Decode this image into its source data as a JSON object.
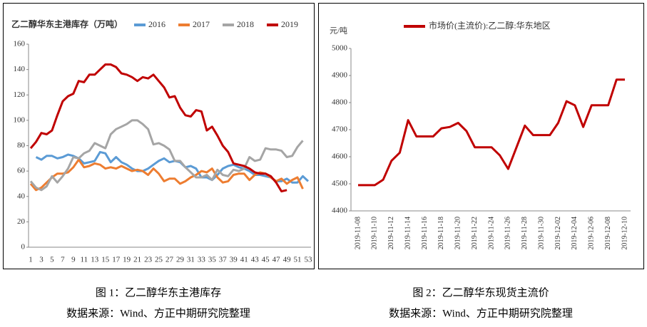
{
  "chart_data": [
    {
      "type": "line",
      "title": "乙二醇华东主港库存（万吨）",
      "categories": [
        1,
        null,
        3,
        null,
        5,
        null,
        7,
        null,
        9,
        null,
        11,
        null,
        13,
        null,
        15,
        null,
        17,
        null,
        19,
        null,
        21,
        null,
        23,
        null,
        25,
        null,
        27,
        null,
        29,
        null,
        31,
        null,
        33,
        null,
        35,
        null,
        37,
        null,
        39,
        null,
        41,
        null,
        43,
        null,
        45,
        null,
        47,
        null,
        49,
        null,
        51,
        null,
        53
      ],
      "series": [
        {
          "name": "2016",
          "color": "#5b9bd5",
          "values": [
            null,
            71,
            69,
            72,
            72,
            70,
            71,
            73,
            72,
            70,
            66,
            67,
            68,
            75,
            74,
            67,
            71,
            67,
            65,
            62,
            60,
            60,
            62,
            65,
            68,
            70,
            67,
            68,
            67,
            63,
            64,
            62,
            55,
            55,
            53,
            57,
            62,
            64,
            65,
            63,
            62,
            60,
            57,
            57,
            56,
            55,
            52,
            52,
            54,
            51,
            51,
            56,
            52
          ]
        },
        {
          "name": "2017",
          "color": "#ed7d31",
          "values": [
            50,
            45,
            47,
            51,
            55,
            58,
            58,
            59,
            63,
            69,
            63,
            64,
            66,
            65,
            62,
            63,
            62,
            64,
            62,
            60,
            61,
            60,
            57,
            62,
            58,
            52,
            54,
            54,
            50,
            52,
            55,
            57,
            60,
            59,
            62,
            55,
            51,
            52,
            57,
            58,
            58,
            53,
            57,
            59,
            58,
            55,
            52,
            54,
            50,
            53,
            55,
            46,
            null
          ]
        },
        {
          "name": "2018",
          "color": "#a5a5a5",
          "values": [
            52,
            47,
            45,
            48,
            56,
            51,
            56,
            62,
            71,
            70,
            74,
            76,
            82,
            80,
            78,
            89,
            93,
            95,
            97,
            100,
            100,
            97,
            93,
            81,
            82,
            80,
            77,
            68,
            68,
            63,
            59,
            55,
            55,
            57,
            53,
            61,
            57,
            56,
            61,
            60,
            62,
            71,
            68,
            69,
            78,
            77,
            77,
            76,
            71,
            72,
            79,
            84,
            null
          ]
        },
        {
          "name": "2019",
          "color": "#c00000",
          "values": [
            78,
            83,
            90,
            89,
            92,
            104,
            115,
            119,
            121,
            131,
            130,
            136,
            136,
            140,
            144,
            144,
            142,
            137,
            136,
            134,
            131,
            134,
            133,
            136,
            131,
            126,
            118,
            119,
            110,
            104,
            103,
            108,
            107,
            92,
            95,
            88,
            80,
            75,
            66,
            65,
            64,
            62,
            59,
            58,
            58,
            56,
            51,
            44,
            45,
            null,
            null,
            null,
            null
          ]
        }
      ],
      "ylim": [
        0,
        160
      ],
      "yticks": [
        0,
        20,
        40,
        60,
        80,
        100,
        120,
        140,
        160
      ],
      "grid": false,
      "caption": "图 1：乙二醇华东主港库存",
      "source": "数据来源：Wind、方正中期研究院整理"
    },
    {
      "type": "line",
      "y_label": "元/吨",
      "categories": [
        "2019-11-08",
        null,
        "2019-11-10",
        null,
        "2019-11-12",
        null,
        "2019-11-14",
        null,
        "2019-11-16",
        null,
        "2019-11-18",
        null,
        "2019-11-20",
        null,
        "2019-11-22",
        null,
        "2019-11-24",
        null,
        "2019-11-26",
        null,
        "2019-11-28",
        null,
        "2019-11-30",
        null,
        "2019-12-02",
        null,
        "2019-12-04",
        null,
        "2019-12-06",
        null,
        "2019-12-08",
        null,
        "2019-12-10"
      ],
      "series": [
        {
          "name": "市场价(主流价):乙二醇:华东地区",
          "color": "#c00000",
          "values": [
            4495,
            4495,
            4495,
            4515,
            4585,
            4615,
            4735,
            4675,
            4675,
            4675,
            4705,
            4710,
            4725,
            4695,
            4635,
            4635,
            4635,
            4605,
            4555,
            4635,
            4715,
            4680,
            4680,
            4680,
            4725,
            4805,
            4790,
            4710,
            4790,
            4790,
            4790,
            4885,
            4885
          ]
        }
      ],
      "ylim": [
        4400,
        5000
      ],
      "yticks": [
        4400,
        4500,
        4600,
        4700,
        4800,
        4900,
        5000
      ],
      "grid": false,
      "caption": "图 2：乙二醇华东现货主流价",
      "source": "数据来源：Wind、方正中期研究院整理"
    }
  ]
}
